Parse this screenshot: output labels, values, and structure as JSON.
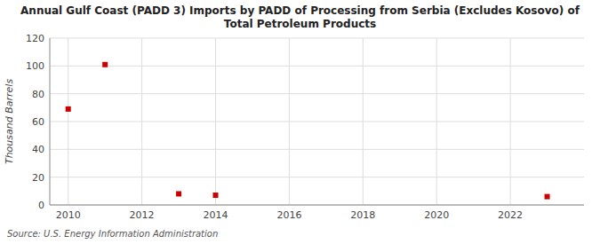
{
  "chart_data": {
    "type": "scatter",
    "title": "Annual Gulf Coast (PADD 3) Imports by PADD of Processing from Serbia (Excludes Kosovo) of\nTotal Petroleum Products",
    "y_label": "Thousand Barrels",
    "annotations": [
      "Source: U.S. Energy Information Administration"
    ],
    "x": [
      2010,
      2011,
      2013,
      2014,
      2023
    ],
    "values": [
      69,
      101,
      8,
      7,
      6
    ],
    "color": "#cc0000",
    "marker": "square",
    "xlim": [
      2009.5,
      2024.0
    ],
    "ylim": [
      0,
      120
    ],
    "xticks": [
      2010,
      2012,
      2014,
      2016,
      2018,
      2020,
      2022
    ],
    "yticks": [
      0,
      20,
      40,
      60,
      80,
      100,
      120
    ],
    "grid": true
  }
}
